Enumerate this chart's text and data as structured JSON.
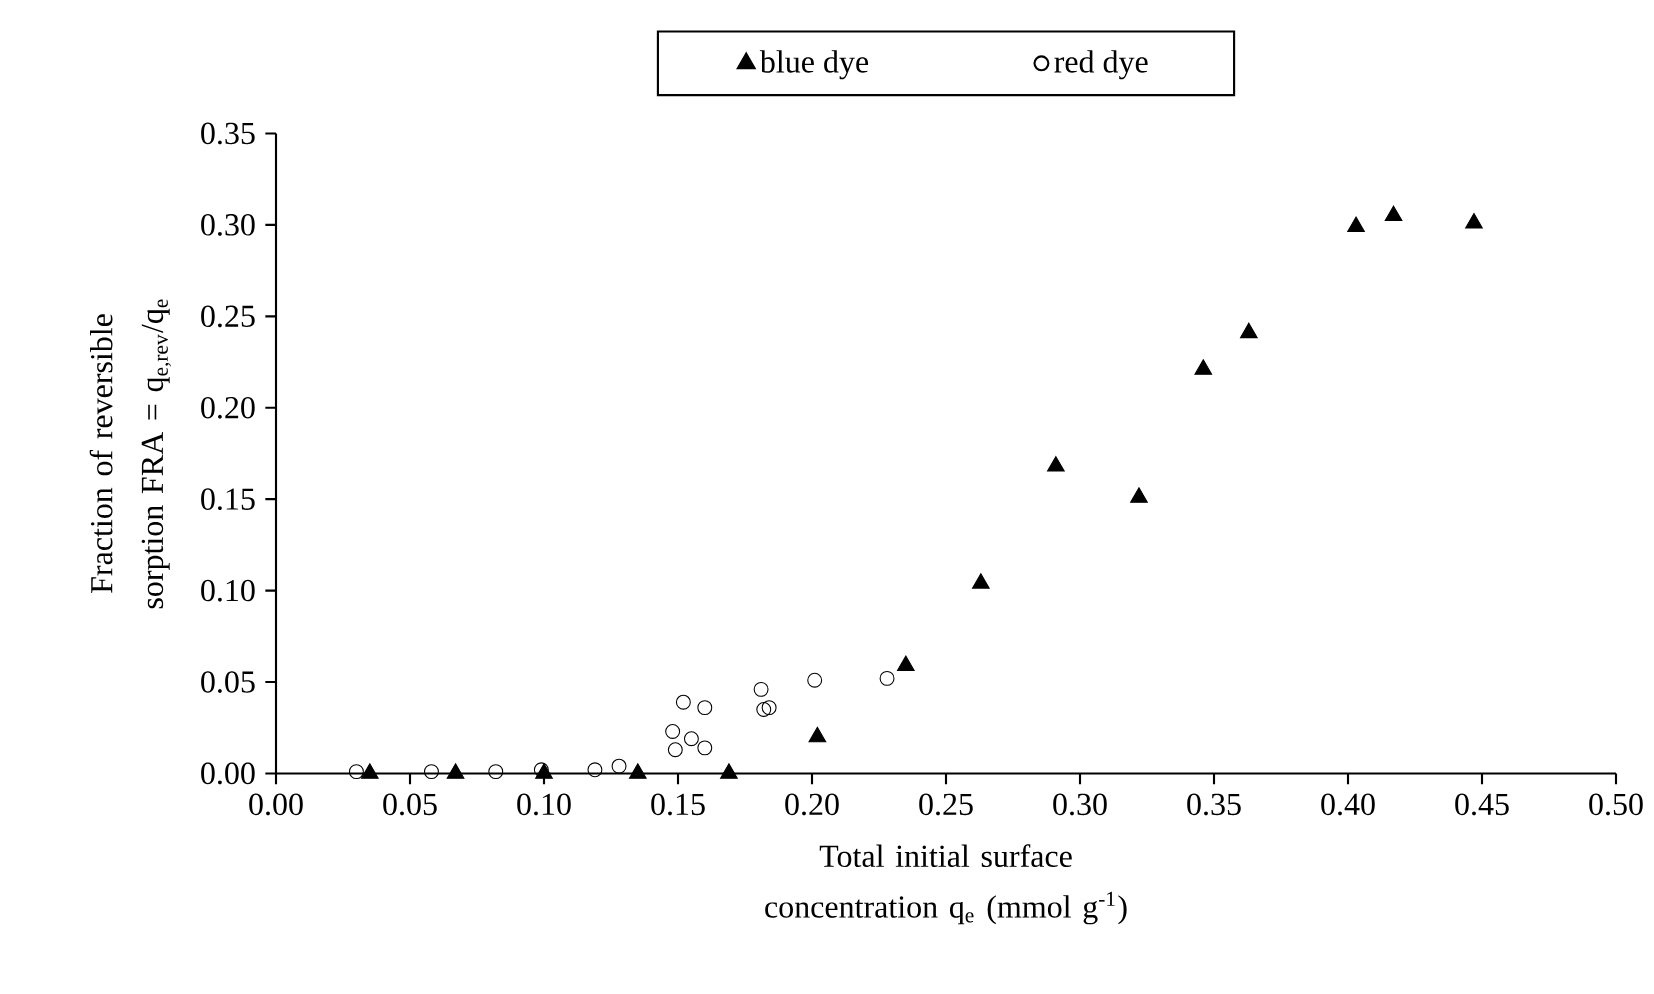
{
  "chart_data": {
    "type": "scatter",
    "xlabel": "Total initial surface concentration q$_{e}$ (mmol g$^{-1}$)",
    "ylabel": "Fraction of reversible sorption FRA = q$_{e,rev}$/q$_{e}$",
    "series": [
      {
        "name": "blue dye",
        "color": "#000000",
        "marker": "triangle",
        "x": [
          0.035,
          0.067,
          0.1,
          0.135,
          0.169,
          0.202,
          0.235,
          0.263,
          0.291,
          0.322,
          0.346,
          0.363,
          0.403,
          0.417,
          0.447
        ],
        "values": [
          0,
          0,
          0,
          0,
          0,
          0.02,
          0.059,
          0.104,
          0.168,
          0.151,
          0.221,
          0.241,
          0.299,
          0.305,
          0.301
        ]
      },
      {
        "name": "red dye",
        "color": "#000000",
        "marker": "circle",
        "x": [
          0.03,
          0.058,
          0.082,
          0.099,
          0.119,
          0.128,
          0.148,
          0.149,
          0.152,
          0.155,
          0.16,
          0.16,
          0.181,
          0.182,
          0.184,
          0.201,
          0.228
        ],
        "values": [
          0.001,
          0.001,
          0.001,
          0.002,
          0.002,
          0.004,
          0.023,
          0.013,
          0.039,
          0.019,
          0.014,
          0.036,
          0.046,
          0.035,
          0.036,
          0.051,
          0.052
        ]
      }
    ],
    "xlim": [
      0,
      0.5
    ],
    "ylim": [
      0,
      0.35
    ],
    "xticks": [
      {
        "value": 0,
        "label": "0.00"
      },
      {
        "value": 0.05,
        "label": "0.05"
      },
      {
        "value": 0.1,
        "label": "0.10"
      },
      {
        "value": 0.15,
        "label": "0.15"
      },
      {
        "value": 0.2,
        "label": "0.20"
      },
      {
        "value": 0.25,
        "label": "0.25"
      },
      {
        "value": 0.3,
        "label": "0.30"
      },
      {
        "value": 0.35,
        "label": "0.35"
      },
      {
        "value": 0.4,
        "label": "0.40"
      },
      {
        "value": 0.45,
        "label": "0.45"
      },
      {
        "value": 0.5,
        "label": "0.50"
      }
    ],
    "yticks": [
      {
        "value": 0,
        "label": "0.00"
      },
      {
        "value": 0.05,
        "label": "0.05"
      },
      {
        "value": 0.1,
        "label": "0.10"
      },
      {
        "value": 0.15,
        "label": "0.15"
      },
      {
        "value": 0.2,
        "label": "0.20"
      },
      {
        "value": 0.25,
        "label": "0.25"
      },
      {
        "value": 0.3,
        "label": "0.30"
      },
      {
        "value": 0.35,
        "label": "0.35"
      }
    ],
    "grid": false,
    "legend": "top"
  }
}
